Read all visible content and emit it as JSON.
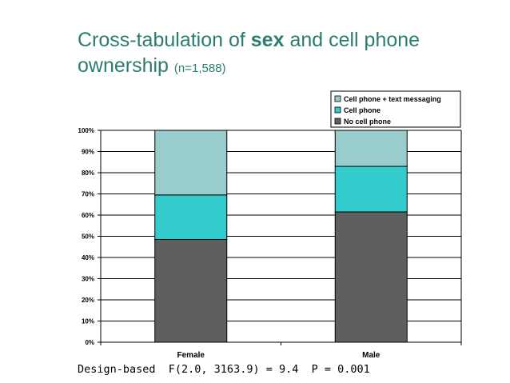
{
  "slide": {
    "title_part1": "Cross-tabulation of ",
    "title_bold": "sex",
    "title_part2": " and cell phone",
    "title_line2": "ownership ",
    "title_sub": "(n=1,588)",
    "footer": "Design-based  F(2.0, 3163.9) = 9.4  P = 0.001"
  },
  "chart_data": {
    "type": "bar",
    "stacked": true,
    "percent": true,
    "categories": [
      "Female",
      "Male"
    ],
    "series": [
      {
        "name": "No cell phone",
        "values": [
          48.5,
          61.5
        ],
        "color": "#5f5f5f"
      },
      {
        "name": "Cell phone",
        "values": [
          21,
          21.5
        ],
        "color": "#33cccc"
      },
      {
        "name": "Cell phone + text messaging",
        "values": [
          30.5,
          17
        ],
        "color": "#99cccc"
      }
    ],
    "ylim": [
      0,
      100
    ],
    "yticks": [
      "0%",
      "10%",
      "20%",
      "30%",
      "40%",
      "50%",
      "60%",
      "70%",
      "80%",
      "90%",
      "100%"
    ],
    "grid": true,
    "legend_position": "top-right"
  }
}
